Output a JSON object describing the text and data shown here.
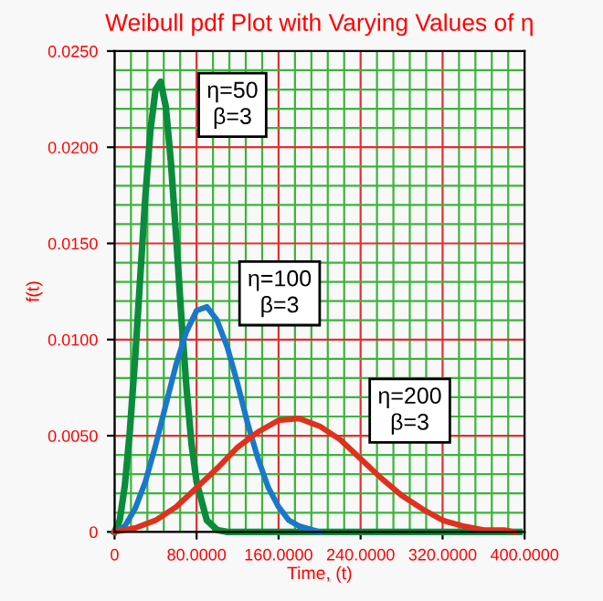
{
  "chart_data": {
    "type": "line",
    "title": "Weibull pdf Plot with Varying Values of η",
    "xlabel": "Time, (t)",
    "ylabel": "f(t)",
    "series": [
      {
        "color": "#0a8c3c",
        "x": [
          0,
          5,
          10,
          15,
          20,
          25,
          30,
          35,
          40,
          45,
          50,
          55,
          60,
          65,
          70,
          75,
          80,
          90,
          100,
          110,
          395
        ],
        "values": [
          0,
          0.0006,
          0.0024,
          0.0053,
          0.009,
          0.0132,
          0.0174,
          0.0209,
          0.023,
          0.0234,
          0.0221,
          0.0192,
          0.0154,
          0.0113,
          0.0076,
          0.0046,
          0.0026,
          0.0006,
          0.0001,
          0,
          0
        ]
      },
      {
        "color": "#1a78c8",
        "x": [
          0,
          10,
          20,
          30,
          40,
          50,
          60,
          70,
          80,
          90,
          100,
          110,
          120,
          130,
          140,
          150,
          160,
          170,
          180,
          200
        ],
        "values": [
          0,
          0.0003,
          0.0012,
          0.0026,
          0.0045,
          0.0066,
          0.0087,
          0.0104,
          0.0115,
          0.0117,
          0.011,
          0.0096,
          0.0077,
          0.0056,
          0.0038,
          0.0023,
          0.0013,
          0.0006,
          0.0003,
          0
        ]
      },
      {
        "color": "#e0301e",
        "x": [
          0,
          20,
          40,
          60,
          80,
          100,
          120,
          140,
          160,
          180,
          200,
          220,
          240,
          260,
          280,
          300,
          320,
          340,
          360,
          380,
          390
        ],
        "values": [
          0,
          0.0002,
          0.0006,
          0.0013,
          0.0023,
          0.0033,
          0.0044,
          0.0052,
          0.0058,
          0.0059,
          0.0055,
          0.0048,
          0.0038,
          0.0028,
          0.0019,
          0.0012,
          0.0006,
          0.0003,
          0.0001,
          0.0001,
          0
        ]
      }
    ],
    "annotations": [
      {
        "text": "η=50\nβ=3",
        "x": 115,
        "y": 0.0222
      },
      {
        "text": "η=100\nβ=3",
        "x": 161,
        "y": 0.0124
      },
      {
        "text": "η=200\nβ=3",
        "x": 288,
        "y": 0.0063
      }
    ],
    "xlim": [
      0,
      400
    ],
    "xticks": [
      0,
      {
        "value": 16,
        "label": null
      },
      {
        "value": 32,
        "label": null
      },
      {
        "value": 48,
        "label": null
      },
      {
        "value": 64,
        "label": null
      },
      {
        "value": 80,
        "label": "80.0000"
      },
      {
        "value": 96,
        "label": null
      },
      {
        "value": 112,
        "label": null
      },
      {
        "value": 128,
        "label": null
      },
      {
        "value": 144,
        "label": null
      },
      {
        "value": 160,
        "label": "160.0000"
      },
      {
        "value": 176,
        "label": null
      },
      {
        "value": 192,
        "label": null
      },
      {
        "value": 208,
        "label": null
      },
      {
        "value": 224,
        "label": null
      },
      {
        "value": 240,
        "label": "240.0000"
      },
      {
        "value": 256,
        "label": null
      },
      {
        "value": 272,
        "label": null
      },
      {
        "value": 288,
        "label": null
      },
      {
        "value": 304,
        "label": null
      },
      {
        "value": 320,
        "label": "320.0000"
      },
      {
        "value": 336,
        "label": null
      },
      {
        "value": 352,
        "label": null
      },
      {
        "value": 368,
        "label": null
      },
      {
        "value": 384,
        "label": null
      },
      {
        "value": 400,
        "label": "400.0000"
      }
    ],
    "ylim": [
      0,
      0.025
    ],
    "yticks": [
      0,
      {
        "value": 0.001,
        "label": null
      },
      {
        "value": 0.002,
        "label": null
      },
      {
        "value": 0.003,
        "label": null
      },
      {
        "value": 0.004,
        "label": null
      },
      {
        "value": 0.005,
        "label": "0.0050"
      },
      {
        "value": 0.006,
        "label": null
      },
      {
        "value": 0.007,
        "label": null
      },
      {
        "value": 0.008,
        "label": null
      },
      {
        "value": 0.009,
        "label": null
      },
      {
        "value": 0.01,
        "label": "0.0100"
      },
      {
        "value": 0.011,
        "label": null
      },
      {
        "value": 0.012,
        "label": null
      },
      {
        "value": 0.013,
        "label": null
      },
      {
        "value": 0.014,
        "label": null
      },
      {
        "value": 0.015,
        "label": "0.0150"
      },
      {
        "value": 0.016,
        "label": null
      },
      {
        "value": 0.017,
        "label": null
      },
      {
        "value": 0.018,
        "label": null
      },
      {
        "value": 0.019,
        "label": null
      },
      {
        "value": 0.02,
        "label": "0.0200"
      },
      {
        "value": 0.021,
        "label": null
      },
      {
        "value": 0.022,
        "label": null
      },
      {
        "value": 0.023,
        "label": null
      },
      {
        "value": 0.024,
        "label": null
      },
      {
        "value": 0.025,
        "label": "0.0250"
      }
    ],
    "grid": true,
    "legend": false,
    "marker": "none",
    "line_style": "solid"
  }
}
